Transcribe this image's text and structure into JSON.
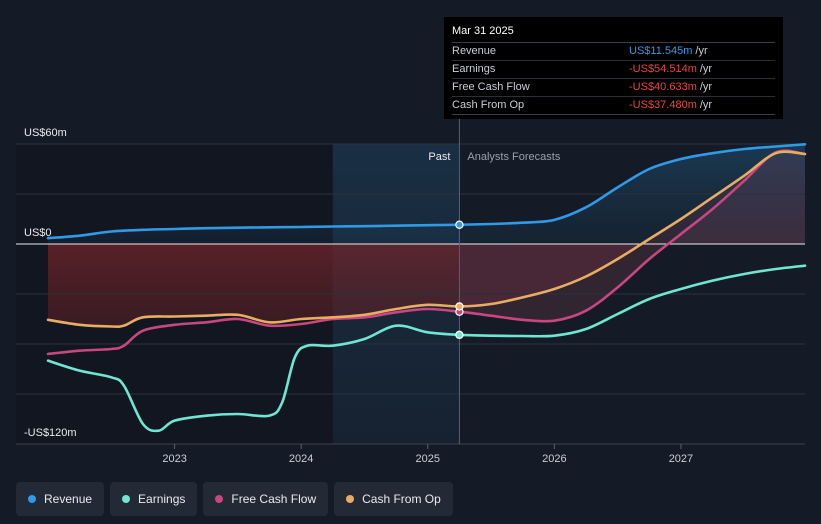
{
  "chart_data": {
    "type": "line",
    "title": "",
    "xlabel": "",
    "ylabel": "",
    "ylim": [
      -120,
      60
    ],
    "y_axis_labels": [
      {
        "value": 60,
        "text": "US$60m"
      },
      {
        "value": 0,
        "text": "US$0"
      },
      {
        "value": -120,
        "text": "-US$120m"
      }
    ],
    "x_ticks": [
      {
        "value": 2023,
        "text": "2023"
      },
      {
        "value": 2024,
        "text": "2024"
      },
      {
        "value": 2025,
        "text": "2025"
      },
      {
        "value": 2026,
        "text": "2026"
      },
      {
        "value": 2027,
        "text": "2027"
      }
    ],
    "xlim": [
      2021.75,
      2027.98
    ],
    "past_label": "Past",
    "forecast_label": "Analysts Forecasts",
    "past_end": 2025.25,
    "highlight_start": 2024.25,
    "grid": true,
    "legend_position": "bottom-left",
    "series": [
      {
        "name": "Revenue",
        "color": "#2f9be8",
        "points": [
          [
            2022.0,
            3.5
          ],
          [
            2022.25,
            5
          ],
          [
            2022.5,
            7.5
          ],
          [
            2022.75,
            8.5
          ],
          [
            2023.0,
            9
          ],
          [
            2023.25,
            9.5
          ],
          [
            2023.5,
            9.8
          ],
          [
            2023.75,
            10
          ],
          [
            2024.0,
            10.2
          ],
          [
            2024.25,
            10.5
          ],
          [
            2024.5,
            10.7
          ],
          [
            2024.75,
            11
          ],
          [
            2025.0,
            11.3
          ],
          [
            2025.25,
            11.545
          ],
          [
            2025.5,
            12
          ],
          [
            2025.75,
            12.8
          ],
          [
            2026.0,
            14.5
          ],
          [
            2026.25,
            22
          ],
          [
            2026.5,
            34
          ],
          [
            2026.75,
            45
          ],
          [
            2027.0,
            51
          ],
          [
            2027.25,
            54.5
          ],
          [
            2027.5,
            57
          ],
          [
            2027.75,
            58.5
          ],
          [
            2027.98,
            59.8
          ]
        ]
      },
      {
        "name": "Earnings",
        "color": "#6ee6d3",
        "points": [
          [
            2022.0,
            -70
          ],
          [
            2022.25,
            -76
          ],
          [
            2022.5,
            -80
          ],
          [
            2022.6,
            -85
          ],
          [
            2022.75,
            -108
          ],
          [
            2022.875,
            -112
          ],
          [
            2023.0,
            -106
          ],
          [
            2023.25,
            -103
          ],
          [
            2023.5,
            -102
          ],
          [
            2023.75,
            -103
          ],
          [
            2023.85,
            -95
          ],
          [
            2023.95,
            -68
          ],
          [
            2024.05,
            -61
          ],
          [
            2024.25,
            -61
          ],
          [
            2024.5,
            -57
          ],
          [
            2024.75,
            -49
          ],
          [
            2025.0,
            -53
          ],
          [
            2025.25,
            -54.514
          ],
          [
            2025.5,
            -55
          ],
          [
            2025.75,
            -55.2
          ],
          [
            2026.0,
            -55
          ],
          [
            2026.25,
            -51
          ],
          [
            2026.5,
            -42
          ],
          [
            2026.75,
            -33
          ],
          [
            2027.0,
            -27
          ],
          [
            2027.25,
            -22
          ],
          [
            2027.5,
            -18
          ],
          [
            2027.75,
            -15
          ],
          [
            2027.98,
            -13
          ]
        ]
      },
      {
        "name": "Free Cash Flow",
        "color": "#c9467f",
        "points": [
          [
            2022.0,
            -66
          ],
          [
            2022.25,
            -64
          ],
          [
            2022.5,
            -63
          ],
          [
            2022.6,
            -61
          ],
          [
            2022.75,
            -52
          ],
          [
            2023.0,
            -48.5
          ],
          [
            2023.25,
            -47
          ],
          [
            2023.5,
            -45
          ],
          [
            2023.75,
            -49
          ],
          [
            2024.0,
            -48
          ],
          [
            2024.25,
            -45
          ],
          [
            2024.5,
            -44
          ],
          [
            2024.75,
            -41
          ],
          [
            2025.0,
            -39
          ],
          [
            2025.25,
            -40.633
          ],
          [
            2025.5,
            -43
          ],
          [
            2025.75,
            -45.5
          ],
          [
            2026.0,
            -46
          ],
          [
            2026.25,
            -40
          ],
          [
            2026.5,
            -26
          ],
          [
            2026.75,
            -9
          ],
          [
            2027.0,
            6
          ],
          [
            2027.25,
            21
          ],
          [
            2027.5,
            38
          ],
          [
            2027.75,
            55
          ],
          [
            2027.98,
            54
          ]
        ]
      },
      {
        "name": "Cash From Op",
        "color": "#e8ad62",
        "points": [
          [
            2022.0,
            -45.5
          ],
          [
            2022.25,
            -48.5
          ],
          [
            2022.5,
            -49.5
          ],
          [
            2022.6,
            -49
          ],
          [
            2022.75,
            -44
          ],
          [
            2023.0,
            -43.5
          ],
          [
            2023.25,
            -43
          ],
          [
            2023.5,
            -42.5
          ],
          [
            2023.75,
            -47
          ],
          [
            2024.0,
            -45
          ],
          [
            2024.25,
            -44
          ],
          [
            2024.5,
            -42.5
          ],
          [
            2024.75,
            -39
          ],
          [
            2025.0,
            -36.5
          ],
          [
            2025.25,
            -37.48
          ],
          [
            2025.5,
            -36
          ],
          [
            2025.75,
            -32
          ],
          [
            2026.0,
            -27
          ],
          [
            2026.25,
            -19.5
          ],
          [
            2026.5,
            -9
          ],
          [
            2026.75,
            3
          ],
          [
            2027.0,
            15
          ],
          [
            2027.25,
            28
          ],
          [
            2027.5,
            41
          ],
          [
            2027.75,
            54.5
          ],
          [
            2027.98,
            54
          ]
        ]
      }
    ]
  },
  "tooltip": {
    "date": "Mar 31 2025",
    "rows": [
      {
        "name": "Revenue",
        "value": "US$11.545m",
        "unit": "/yr",
        "color": "#2f9be8"
      },
      {
        "name": "Earnings",
        "value": "-US$54.514m",
        "unit": "/yr",
        "color": "#e84545"
      },
      {
        "name": "Free Cash Flow",
        "value": "-US$40.633m",
        "unit": "/yr",
        "color": "#e84545"
      },
      {
        "name": "Cash From Op",
        "value": "-US$37.480m",
        "unit": "/yr",
        "color": "#e84545"
      }
    ]
  },
  "legend": [
    {
      "name": "Revenue",
      "color": "#2f9be8"
    },
    {
      "name": "Earnings",
      "color": "#6ee6d3"
    },
    {
      "name": "Free Cash Flow",
      "color": "#c9467f"
    },
    {
      "name": "Cash From Op",
      "color": "#e8ad62"
    }
  ]
}
